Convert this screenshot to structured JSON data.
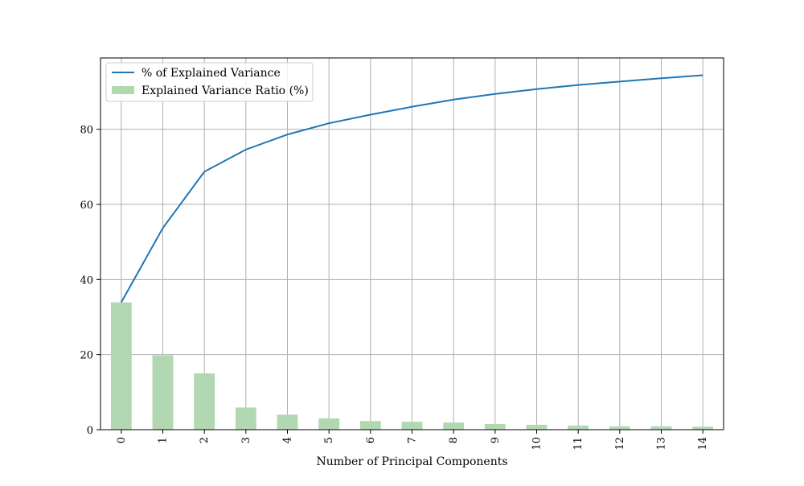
{
  "chart_data": {
    "type": "bar+line",
    "categories": [
      "0",
      "1",
      "2",
      "3",
      "4",
      "5",
      "6",
      "7",
      "8",
      "9",
      "10",
      "11",
      "12",
      "13",
      "14"
    ],
    "series": [
      {
        "name": "Explained Variance Ratio (%)",
        "kind": "bar",
        "color": "#b2d8b2",
        "values": [
          33.9,
          19.8,
          15.0,
          5.9,
          4.0,
          3.0,
          2.3,
          2.1,
          1.9,
          1.5,
          1.3,
          1.1,
          0.9,
          0.9,
          0.8
        ]
      },
      {
        "name": "% of Explained Variance",
        "kind": "line",
        "color": "#1f77b4",
        "values": [
          33.9,
          53.7,
          68.7,
          74.6,
          78.6,
          81.6,
          83.9,
          86.0,
          87.9,
          89.4,
          90.7,
          91.8,
          92.7,
          93.6,
          94.4
        ]
      }
    ],
    "xlabel": "Number of Principal Components",
    "ylabel": "",
    "title": "",
    "ylim": [
      0,
      99
    ],
    "yticks": [
      0,
      20,
      40,
      60,
      80
    ],
    "grid": true,
    "legend_position": "top-left"
  }
}
